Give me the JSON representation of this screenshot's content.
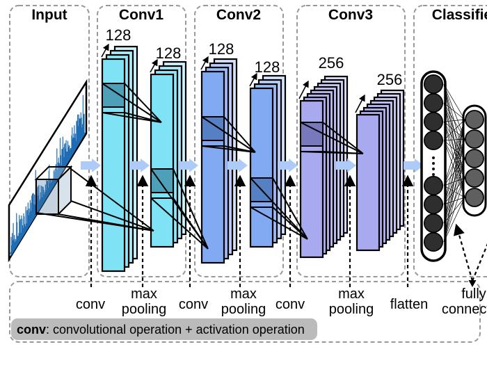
{
  "sections": [
    {
      "title": "Input"
    },
    {
      "title": "Conv1",
      "labels": [
        "128",
        "128"
      ]
    },
    {
      "title": "Conv2",
      "labels": [
        "128",
        "128"
      ]
    },
    {
      "title": "Conv3",
      "labels": [
        "256",
        "256"
      ]
    },
    {
      "title": "Classifier"
    }
  ],
  "operations": [
    {
      "lines": [
        "conv"
      ]
    },
    {
      "lines": [
        "max",
        "pooling"
      ]
    },
    {
      "lines": [
        "conv"
      ]
    },
    {
      "lines": [
        "max",
        "pooling"
      ]
    },
    {
      "lines": [
        "conv"
      ]
    },
    {
      "lines": [
        "max",
        "pooling"
      ]
    },
    {
      "lines": [
        "flatten"
      ]
    },
    {
      "lines": [
        "fully",
        "connected"
      ]
    }
  ],
  "legend": {
    "term": "conv",
    "definition": ": convolutional operation + activation operation"
  },
  "colors": {
    "conv1": "#7FE3F5",
    "conv1_window": "#4E9FB8",
    "conv2": "#82AAF2",
    "conv2_window": "#5580C4",
    "conv3": "#A9A9EF",
    "conv3_window": "#7878BC",
    "flow_arrow": "#AECBF8",
    "waveform": "#1E6CB4",
    "neuron_dark": "#2E2E2E",
    "neuron_gray": "#5F5F5F",
    "legend_bg": "#BBBBBB",
    "box_dash": "#999999"
  }
}
